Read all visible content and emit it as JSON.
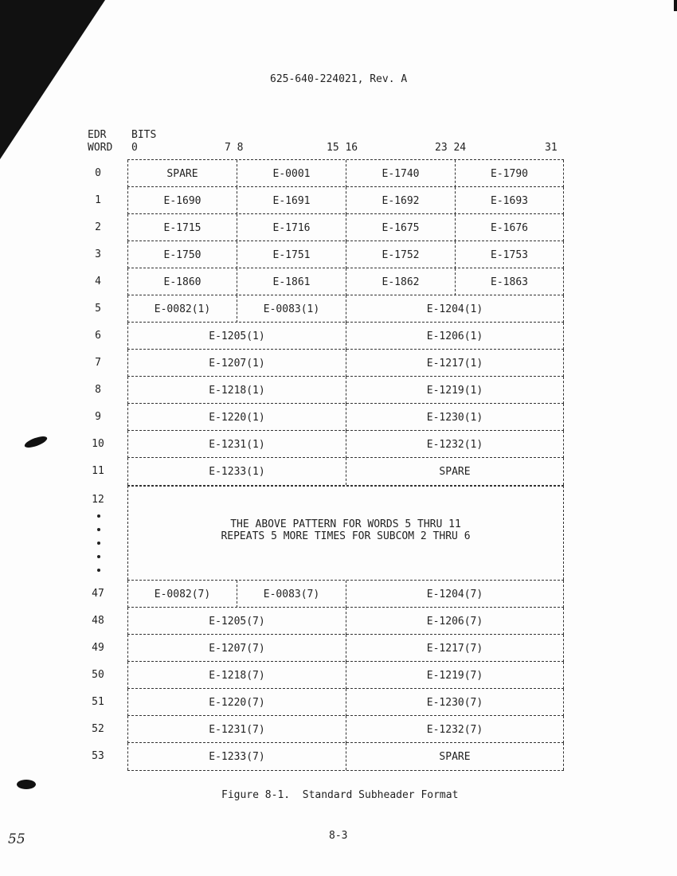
{
  "header": {
    "doc_id": "625-640-224021, Rev. A"
  },
  "table": {
    "col_header_1": "EDR",
    "col_header_2": "WORD",
    "bits_label": "BITS",
    "bit_ticks": [
      "0",
      "7 8",
      "15 16",
      "23 24",
      "31"
    ],
    "rows_top": [
      {
        "word": "0",
        "cells": [
          {
            "t": "SPARE",
            "s": 1
          },
          {
            "t": "E-0001",
            "s": 1
          },
          {
            "t": "E-1740",
            "s": 1
          },
          {
            "t": "E-1790",
            "s": 1
          }
        ]
      },
      {
        "word": "1",
        "cells": [
          {
            "t": "E-1690",
            "s": 1
          },
          {
            "t": "E-1691",
            "s": 1
          },
          {
            "t": "E-1692",
            "s": 1
          },
          {
            "t": "E-1693",
            "s": 1
          }
        ]
      },
      {
        "word": "2",
        "cells": [
          {
            "t": "E-1715",
            "s": 1
          },
          {
            "t": "E-1716",
            "s": 1
          },
          {
            "t": "E-1675",
            "s": 1
          },
          {
            "t": "E-1676",
            "s": 1
          }
        ]
      },
      {
        "word": "3",
        "cells": [
          {
            "t": "E-1750",
            "s": 1
          },
          {
            "t": "E-1751",
            "s": 1
          },
          {
            "t": "E-1752",
            "s": 1
          },
          {
            "t": "E-1753",
            "s": 1
          }
        ]
      },
      {
        "word": "4",
        "cells": [
          {
            "t": "E-1860",
            "s": 1
          },
          {
            "t": "E-1861",
            "s": 1
          },
          {
            "t": "E-1862",
            "s": 1
          },
          {
            "t": "E-1863",
            "s": 1
          }
        ]
      },
      {
        "word": "5",
        "cells": [
          {
            "t": "E-0082(1)",
            "s": 1
          },
          {
            "t": "E-0083(1)",
            "s": 1
          },
          {
            "t": "E-1204(1)",
            "s": 2
          }
        ]
      },
      {
        "word": "6",
        "cells": [
          {
            "t": "E-1205(1)",
            "s": 2
          },
          {
            "t": "E-1206(1)",
            "s": 2
          }
        ]
      },
      {
        "word": "7",
        "cells": [
          {
            "t": "E-1207(1)",
            "s": 2
          },
          {
            "t": "E-1217(1)",
            "s": 2
          }
        ]
      },
      {
        "word": "8",
        "cells": [
          {
            "t": "E-1218(1)",
            "s": 2
          },
          {
            "t": "E-1219(1)",
            "s": 2
          }
        ]
      },
      {
        "word": "9",
        "cells": [
          {
            "t": "E-1220(1)",
            "s": 2
          },
          {
            "t": "E-1230(1)",
            "s": 2
          }
        ]
      },
      {
        "word": "10",
        "cells": [
          {
            "t": "E-1231(1)",
            "s": 2
          },
          {
            "t": "E-1232(1)",
            "s": 2
          }
        ]
      },
      {
        "word": "11",
        "cells": [
          {
            "t": "E-1233(1)",
            "s": 2
          },
          {
            "t": "SPARE",
            "s": 2
          }
        ]
      }
    ],
    "repeat_word": "12",
    "repeat_note_1": "THE ABOVE PATTERN FOR WORDS 5 THRU 11",
    "repeat_note_2": "REPEATS 5 MORE TIMES FOR SUBCOM 2 THRU 6",
    "rows_bottom": [
      {
        "word": "47",
        "cells": [
          {
            "t": "E-0082(7)",
            "s": 1
          },
          {
            "t": "E-0083(7)",
            "s": 1
          },
          {
            "t": "E-1204(7)",
            "s": 2
          }
        ]
      },
      {
        "word": "48",
        "cells": [
          {
            "t": "E-1205(7)",
            "s": 2
          },
          {
            "t": "E-1206(7)",
            "s": 2
          }
        ]
      },
      {
        "word": "49",
        "cells": [
          {
            "t": "E-1207(7)",
            "s": 2
          },
          {
            "t": "E-1217(7)",
            "s": 2
          }
        ]
      },
      {
        "word": "50",
        "cells": [
          {
            "t": "E-1218(7)",
            "s": 2
          },
          {
            "t": "E-1219(7)",
            "s": 2
          }
        ]
      },
      {
        "word": "51",
        "cells": [
          {
            "t": "E-1220(7)",
            "s": 2
          },
          {
            "t": "E-1230(7)",
            "s": 2
          }
        ]
      },
      {
        "word": "52",
        "cells": [
          {
            "t": "E-1231(7)",
            "s": 2
          },
          {
            "t": "E-1232(7)",
            "s": 2
          }
        ]
      },
      {
        "word": "53",
        "cells": [
          {
            "t": "E-1233(7)",
            "s": 2
          },
          {
            "t": "SPARE",
            "s": 2
          }
        ]
      }
    ]
  },
  "caption": "Figure 8-1.  Standard Subheader Format",
  "footer": {
    "page_number": "8-3",
    "handwritten_mark": "55"
  }
}
